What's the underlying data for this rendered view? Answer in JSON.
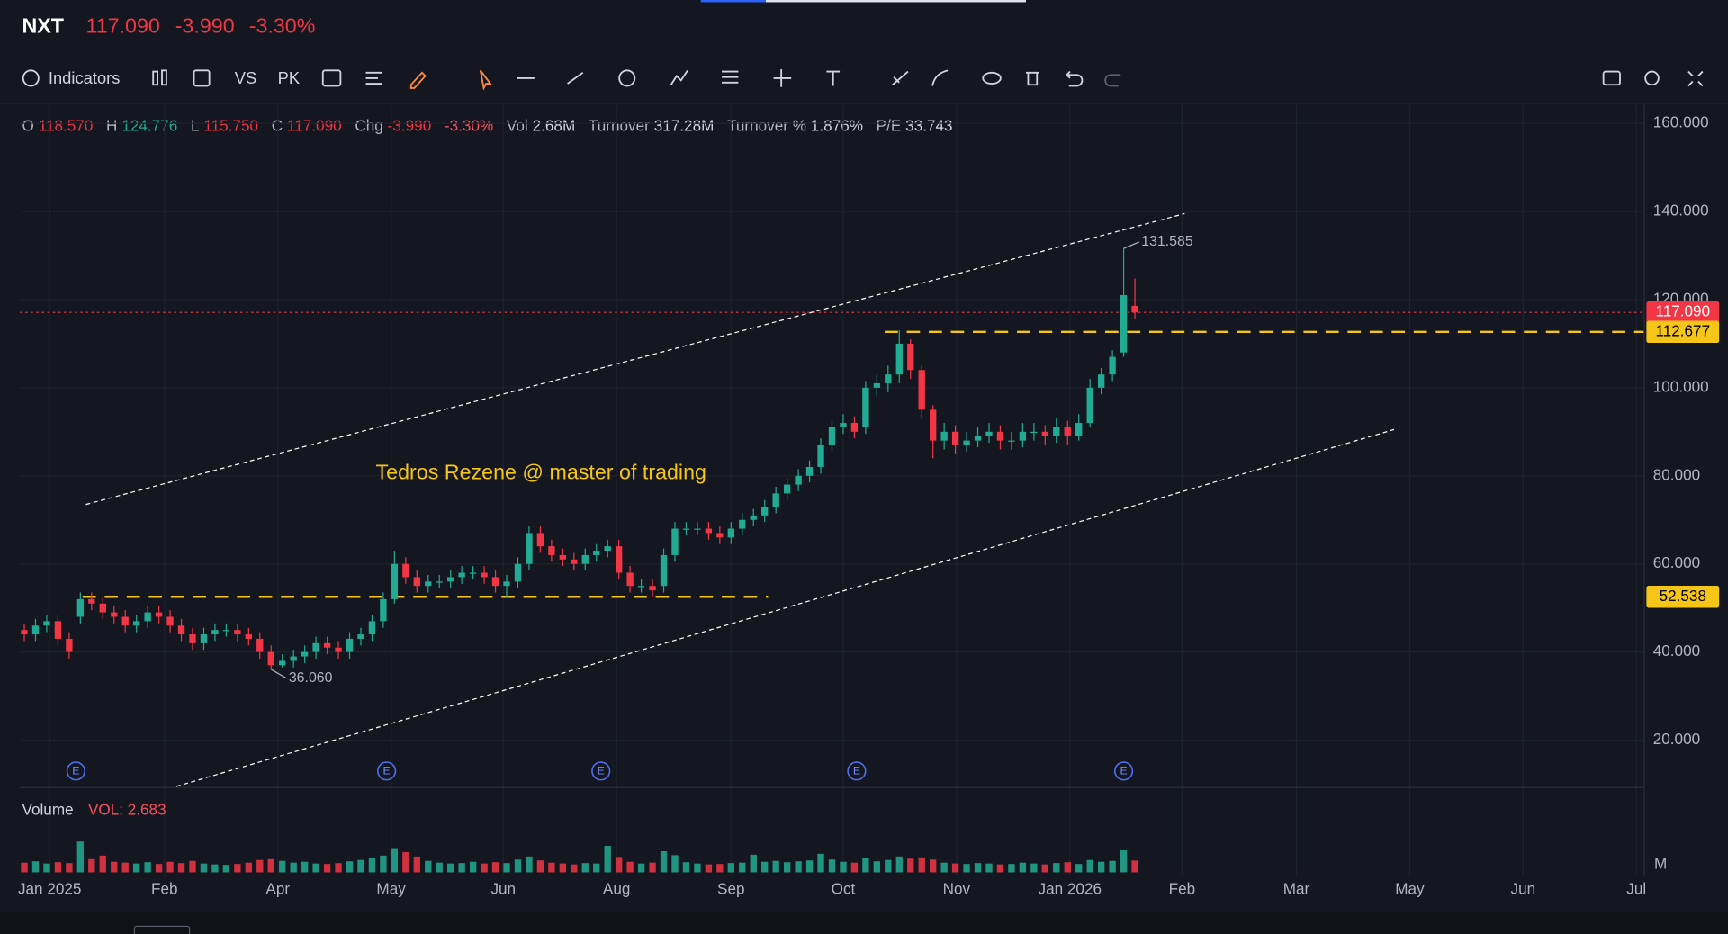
{
  "header": {
    "symbol": "NXT",
    "price": "117.090",
    "change": "-3.990",
    "change_pct": "-3.30%"
  },
  "toolbar": {
    "indicators": "Indicators",
    "vs": "VS",
    "pk": "PK"
  },
  "info": [
    {
      "label": "O",
      "value": "118.570",
      "color": "#f23645"
    },
    {
      "label": "H",
      "value": "124.776",
      "color": "#22ab94"
    },
    {
      "label": "L",
      "value": "115.750",
      "color": "#f23645"
    },
    {
      "label": "C",
      "value": "117.090",
      "color": "#f23645"
    },
    {
      "label": "Chg",
      "value": "-3.990",
      "color": "#f23645"
    },
    {
      "label": null,
      "value": "-3.30%",
      "color": "#f7525f"
    },
    {
      "label": "Vol",
      "value": "2.68M",
      "color": "#d1d4dc"
    },
    {
      "label": "Turnover",
      "value": "317.28M",
      "color": "#d1d4dc"
    },
    {
      "label": "Turnover %",
      "value": "1.876%",
      "color": "#d1d4dc"
    },
    {
      "label": "P/E",
      "value": "33.743",
      "color": "#d1d4dc"
    }
  ],
  "chart_data": {
    "type": "candlestick",
    "watermark": "Tedros Rezene @ master of trading",
    "up_color": "#22ab94",
    "down_color": "#f23645",
    "grid": true,
    "open": [
      45,
      44,
      46,
      47,
      43,
      48,
      52,
      51,
      49,
      48,
      46,
      47,
      49,
      48,
      46,
      44,
      42,
      44,
      45,
      45,
      44,
      43,
      40,
      37,
      38,
      39,
      40,
      42,
      41,
      40,
      43,
      44,
      47,
      52,
      60,
      57,
      55,
      56,
      56,
      57,
      58,
      58,
      57,
      55,
      56,
      60,
      67,
      64,
      62,
      61,
      60,
      62,
      63,
      64,
      58,
      55,
      55,
      55,
      62,
      68,
      68,
      68,
      67,
      66,
      68,
      70,
      71,
      73,
      76,
      78,
      80,
      82,
      87,
      91,
      92,
      91,
      100,
      101,
      103,
      110,
      104,
      95,
      88,
      90,
      87,
      88,
      89,
      90,
      88,
      88,
      90,
      90,
      89,
      91,
      89,
      92,
      100,
      103,
      108,
      118.57
    ],
    "high": [
      46.5,
      47.5,
      48.5,
      48.5,
      44.5,
      53.5,
      53.5,
      52.5,
      50.5,
      49.5,
      48.5,
      50.5,
      50.5,
      49.5,
      47.5,
      45.5,
      45.5,
      46.5,
      46.5,
      46.5,
      45.5,
      44.5,
      41.5,
      39.5,
      40.5,
      41.5,
      43.5,
      43.5,
      42.5,
      44.5,
      45.5,
      48.5,
      53.5,
      63,
      61.5,
      58.5,
      57.5,
      57.5,
      58.5,
      59.5,
      59.5,
      59.5,
      58.5,
      57.5,
      61.5,
      68.5,
      68.5,
      65.5,
      63.5,
      62.5,
      63.5,
      64.5,
      65.5,
      65.5,
      59.5,
      56.5,
      56.5,
      63.5,
      69.5,
      69.5,
      69.5,
      69.5,
      68.5,
      69.5,
      71.5,
      72.5,
      74.5,
      77.5,
      79.5,
      81.5,
      83.5,
      88.5,
      92.5,
      94,
      93.5,
      101.5,
      103,
      105,
      113,
      111,
      105,
      96,
      92,
      91.5,
      90,
      91,
      92,
      91.5,
      90,
      92,
      92,
      91.5,
      93,
      92.5,
      94,
      102,
      104.5,
      108.5,
      131.585,
      124.776
    ],
    "low": [
      42.5,
      42.5,
      44.5,
      41.5,
      38.5,
      46.5,
      49.5,
      47.5,
      46.5,
      44.5,
      44.5,
      45.5,
      46.5,
      44.5,
      42.5,
      40.5,
      40.5,
      42.5,
      43.5,
      42.5,
      41.5,
      38.5,
      36.06,
      36.5,
      36.5,
      37.5,
      38.5,
      39.5,
      38.5,
      38.5,
      41.5,
      42.5,
      45.5,
      51,
      55.5,
      53.5,
      53.5,
      54.5,
      54.5,
      55.5,
      56.5,
      55.5,
      53.5,
      52.5,
      54.5,
      58.5,
      62.5,
      60.5,
      59.5,
      58.5,
      58.5,
      60.5,
      61.5,
      56.5,
      53.5,
      53.5,
      52.5,
      53.5,
      60.5,
      66.5,
      66.5,
      65.5,
      64.5,
      64.5,
      66.5,
      68.5,
      69.5,
      71.5,
      74.5,
      76.5,
      78.5,
      80.5,
      85.5,
      89.5,
      88.5,
      89.5,
      98,
      99,
      101,
      102,
      93,
      84,
      86,
      85,
      85.5,
      86.5,
      87.5,
      86,
      86,
      86.5,
      88,
      87,
      87.5,
      87,
      88,
      91,
      98.5,
      101.5,
      107,
      115.75
    ],
    "close": [
      44,
      46,
      47,
      43,
      40,
      52,
      51,
      49,
      48,
      46,
      47,
      49,
      48,
      46,
      44,
      42,
      44,
      45,
      45,
      44,
      43,
      40,
      37,
      38,
      39,
      40,
      42,
      41,
      40,
      43,
      44,
      47,
      52,
      60,
      57,
      55,
      56,
      56,
      57,
      58,
      58,
      57,
      55,
      56,
      60,
      67,
      64,
      62,
      61,
      60,
      62,
      63,
      64,
      58,
      55,
      55,
      54,
      62,
      68,
      68,
      68,
      67,
      66,
      68,
      70,
      71,
      73,
      76,
      78,
      80,
      82,
      87,
      91,
      92,
      90,
      100,
      101,
      103,
      110,
      104,
      95,
      88,
      90,
      87,
      88,
      89,
      90,
      88,
      88,
      90,
      90,
      89,
      91,
      89,
      92,
      100,
      103,
      107,
      121,
      117.09
    ],
    "volume": [
      2.2,
      2.5,
      2.0,
      2.3,
      2.1,
      7.0,
      3.0,
      3.8,
      2.4,
      2.2,
      2.0,
      2.3,
      1.9,
      2.4,
      2.1,
      2.6,
      2.0,
      1.8,
      1.7,
      1.9,
      2.2,
      2.8,
      3.0,
      2.6,
      2.2,
      2.4,
      2.0,
      1.9,
      2.1,
      2.5,
      2.8,
      3.2,
      3.8,
      5.5,
      4.6,
      3.6,
      2.6,
      2.2,
      2.0,
      2.1,
      2.4,
      2.0,
      2.3,
      2.1,
      2.9,
      3.6,
      2.7,
      2.2,
      2.0,
      1.8,
      2.1,
      2.0,
      6.0,
      3.5,
      2.4,
      2.0,
      2.2,
      4.8,
      3.9,
      2.3,
      2.0,
      1.8,
      1.9,
      2.1,
      2.2,
      4.0,
      2.4,
      2.6,
      2.3,
      2.5,
      2.7,
      4.2,
      2.9,
      2.4,
      2.2,
      3.3,
      2.5,
      2.8,
      3.6,
      3.1,
      3.4,
      2.9,
      2.2,
      2.0,
      1.9,
      2.1,
      2.0,
      1.8,
      1.9,
      2.2,
      2.0,
      1.8,
      2.1,
      2.3,
      1.9,
      2.8,
      2.4,
      2.6,
      5.0,
      2.683
    ],
    "volume_title": "Volume",
    "volume_label": "VOL: 2.683",
    "volume_unit": "M",
    "volume_ylim": [
      0,
      12
    ],
    "xlim": [
      -0.4,
      144.4
    ],
    "xticks": [
      {
        "value": 2.26,
        "label": "Jan 2025"
      },
      {
        "value": 12.5,
        "label": "Feb"
      },
      {
        "value": 22.6,
        "label": "Apr"
      },
      {
        "value": 32.7,
        "label": "May"
      },
      {
        "value": 42.7,
        "label": "Jun"
      },
      {
        "value": 52.8,
        "label": "Aug"
      },
      {
        "value": 63.0,
        "label": "Sep"
      },
      {
        "value": 73.0,
        "label": "Oct"
      },
      {
        "value": 83.1,
        "label": "Nov"
      },
      {
        "value": 93.2,
        "label": "Jan 2026"
      },
      {
        "value": 103.2,
        "label": "Feb"
      },
      {
        "value": 113.4,
        "label": "Mar"
      },
      {
        "value": 123.5,
        "label": "May"
      },
      {
        "value": 133.6,
        "label": "Jun"
      },
      {
        "value": 143.7,
        "label": "Jul"
      }
    ],
    "ylim": [
      9.5,
      164.25
    ],
    "yticks": [
      {
        "value": 20,
        "label": "20.000"
      },
      {
        "value": 40,
        "label": "40.000"
      },
      {
        "value": 60,
        "label": "60.000"
      },
      {
        "value": 80,
        "label": "80.000"
      },
      {
        "value": 100,
        "label": "100.000"
      },
      {
        "value": 120,
        "label": "120.000"
      },
      {
        "value": 140,
        "label": "140.000"
      },
      {
        "value": 160,
        "label": "160.000"
      }
    ],
    "price_lines": [
      {
        "value": 117.09,
        "label": "117.090",
        "color": "#f23645"
      },
      {
        "value": 112.677,
        "label": "112.677",
        "color": "#f5c518"
      },
      {
        "value": 52.538,
        "label": "52.538",
        "color": "#f5c518"
      }
    ],
    "annotations": [
      {
        "text": "131.585",
        "x": 98,
        "y": 131.585
      },
      {
        "text": "36.060",
        "x": 22,
        "y": 36.06
      }
    ],
    "earnings": {
      "label": "E",
      "x": [
        4.6,
        32.3,
        51.4,
        74.2,
        98.0
      ]
    }
  }
}
